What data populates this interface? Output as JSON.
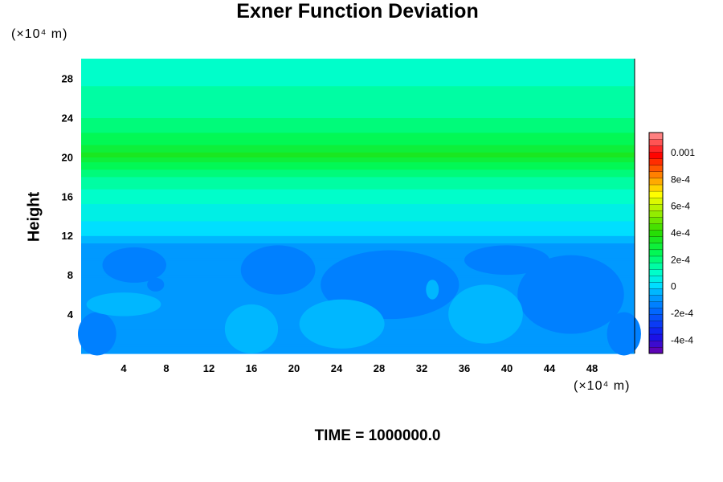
{
  "chart_data": {
    "type": "heatmap",
    "title": "Exner Function Deviation",
    "ylabel": "Height",
    "y_unit_label": "(×10⁴ m)",
    "x_unit_label": "(×10⁴ m)",
    "footer": "TIME = 1000000.0",
    "xlim": [
      0,
      52
    ],
    "ylim": [
      0,
      30
    ],
    "x_ticks": [
      4,
      8,
      12,
      16,
      20,
      24,
      28,
      32,
      36,
      40,
      44,
      48
    ],
    "y_ticks": [
      4,
      8,
      12,
      16,
      20,
      24,
      28
    ],
    "colorbar": {
      "vmin": -0.0005,
      "vmax": 0.00115,
      "tick_values": [
        0.001,
        0.0008,
        0.0006,
        0.0004,
        0.0002,
        0,
        -0.0002,
        -0.0004
      ],
      "tick_labels": [
        "0.001",
        "8e-4",
        "6e-4",
        "4e-4",
        "2e-4",
        "0",
        "-2e-4",
        "-4e-4"
      ]
    },
    "profile": {
      "heights": [
        0,
        11,
        12,
        13,
        16,
        18,
        19.5,
        20.3,
        21.5,
        24,
        28,
        30
      ],
      "values": [
        -8e-05,
        -8e-05,
        -1e-05,
        2e-05,
        0.0001,
        0.00018,
        0.00028,
        0.00034,
        0.00026,
        0.00018,
        0.00012,
        9e-05
      ]
    },
    "low_regions": [
      {
        "x": 1.5,
        "y": 2.0,
        "rx": 1.8,
        "ry": 2.2
      },
      {
        "x": 5.0,
        "y": 9.0,
        "rx": 3.0,
        "ry": 1.8
      },
      {
        "x": 18.5,
        "y": 8.5,
        "rx": 3.5,
        "ry": 2.5
      },
      {
        "x": 29.0,
        "y": 7.0,
        "rx": 6.5,
        "ry": 3.5
      },
      {
        "x": 40.0,
        "y": 9.5,
        "rx": 4.0,
        "ry": 1.5
      },
      {
        "x": 46.0,
        "y": 6.0,
        "rx": 5.0,
        "ry": 4.0
      },
      {
        "x": 51.0,
        "y": 2.0,
        "rx": 1.6,
        "ry": 2.2
      },
      {
        "x": 7.0,
        "y": 7.0,
        "rx": 0.8,
        "ry": 0.7
      }
    ],
    "high_regions": [
      {
        "x": 16.0,
        "y": 2.5,
        "rx": 2.5,
        "ry": 2.5
      },
      {
        "x": 24.5,
        "y": 3.0,
        "rx": 4.0,
        "ry": 2.5
      },
      {
        "x": 38.0,
        "y": 4.0,
        "rx": 3.5,
        "ry": 3.0
      },
      {
        "x": 4.0,
        "y": 5.0,
        "rx": 3.5,
        "ry": 1.2
      },
      {
        "x": 33.0,
        "y": 6.5,
        "rx": 0.6,
        "ry": 1.0
      }
    ]
  }
}
